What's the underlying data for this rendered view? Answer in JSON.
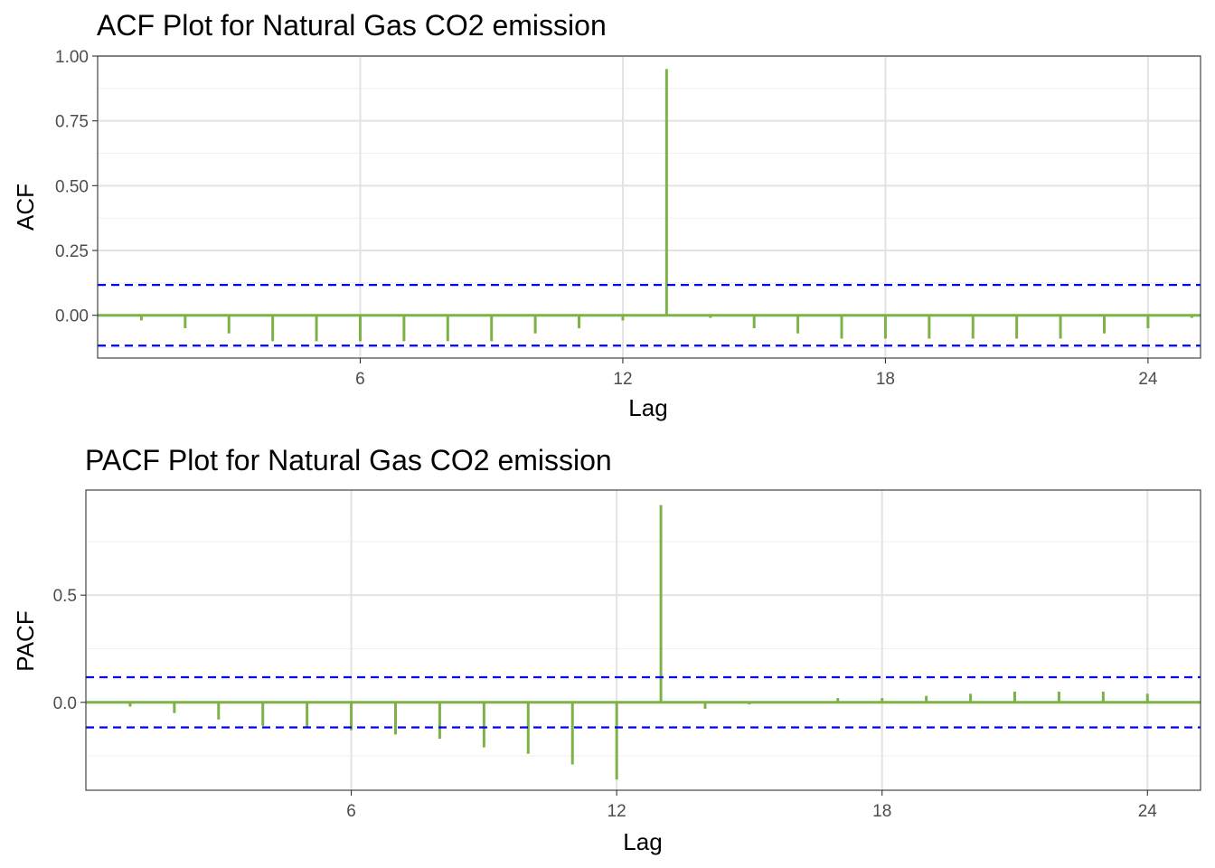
{
  "chart_data": [
    {
      "type": "bar",
      "title": "ACF Plot for Natural Gas CO2 emission",
      "xlabel": "Lag",
      "ylabel": "ACF",
      "x": [
        1,
        2,
        3,
        4,
        5,
        6,
        7,
        8,
        9,
        10,
        11,
        12,
        13,
        14,
        15,
        16,
        17,
        18,
        19,
        20,
        21,
        22,
        23,
        24,
        25
      ],
      "values": [
        -0.02,
        -0.05,
        -0.07,
        -0.1,
        -0.1,
        -0.1,
        -0.1,
        -0.1,
        -0.1,
        -0.07,
        -0.05,
        -0.02,
        0.95,
        -0.01,
        -0.05,
        -0.07,
        -0.09,
        -0.09,
        -0.09,
        -0.09,
        -0.09,
        -0.09,
        -0.07,
        -0.05,
        -0.01
      ],
      "confidence_limit": 0.117,
      "xlim": [
        0,
        25.2
      ],
      "ylim": [
        -0.165,
        1.0
      ],
      "xticks": [
        6,
        12,
        18,
        24
      ],
      "yticks": [
        0.0,
        0.25,
        0.5,
        0.75,
        1.0
      ],
      "ytick_labels": [
        "0.00",
        "0.25",
        "0.50",
        "0.75",
        "1.00"
      ],
      "grid": true,
      "colors": {
        "bars": "#7db346",
        "confidence": "#0000ff"
      }
    },
    {
      "type": "bar",
      "title": "PACF Plot for Natural Gas CO2 emission",
      "xlabel": "Lag",
      "ylabel": "PACF",
      "x": [
        1,
        2,
        3,
        4,
        5,
        6,
        7,
        8,
        9,
        10,
        11,
        12,
        13,
        14,
        15,
        16,
        17,
        18,
        19,
        20,
        21,
        22,
        23,
        24,
        25
      ],
      "values": [
        -0.02,
        -0.05,
        -0.08,
        -0.11,
        -0.12,
        -0.13,
        -0.15,
        -0.17,
        -0.21,
        -0.24,
        -0.29,
        -0.36,
        0.92,
        -0.03,
        -0.01,
        0.0,
        0.02,
        0.02,
        0.03,
        0.04,
        0.05,
        0.05,
        0.05,
        0.04,
        0.0
      ],
      "confidence_limit": 0.117,
      "xlim": [
        0,
        25.2
      ],
      "ylim": [
        -0.41,
        0.99
      ],
      "xticks": [
        6,
        12,
        18,
        24
      ],
      "yticks": [
        0.0,
        0.5
      ],
      "ytick_labels": [
        "0.0",
        "0.5"
      ],
      "grid": true,
      "colors": {
        "bars": "#7db346",
        "confidence": "#0000ff"
      }
    }
  ]
}
